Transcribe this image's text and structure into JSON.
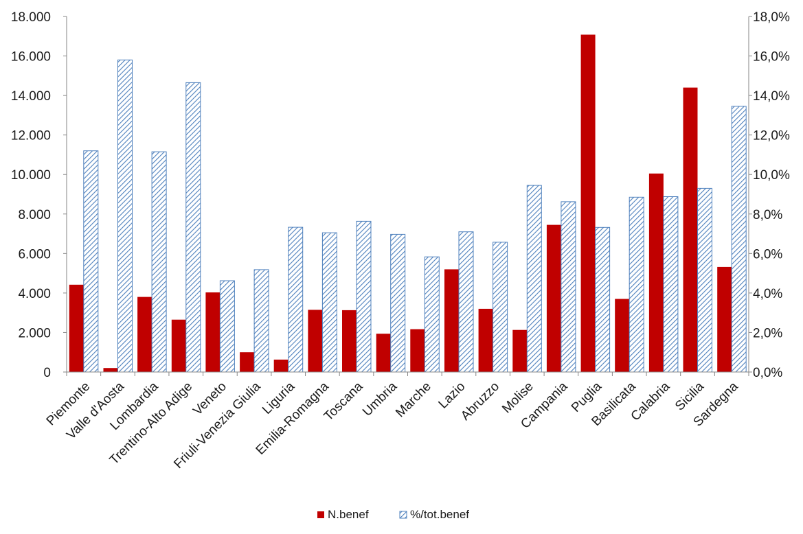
{
  "chart_data": {
    "type": "bar",
    "categories": [
      "Piemonte",
      "Valle d'Aosta",
      "Lombardia",
      "Trentino-Alto Adige",
      "Veneto",
      "Friuli-Venezia Giulia",
      "Liguria",
      "Emilia-Romagna",
      "Toscana",
      "Umbria",
      "Marche",
      "Lazio",
      "Abruzzo",
      "Molise",
      "Campania",
      "Puglia",
      "Basilicata",
      "Calabria",
      "Sicilia",
      "Sardegna"
    ],
    "series": [
      {
        "name": "N.benef",
        "axis": "left",
        "color": "#c00000",
        "values": [
          4420,
          200,
          3800,
          2650,
          4030,
          1000,
          630,
          3150,
          3130,
          1940,
          2170,
          5200,
          3200,
          2130,
          7450,
          17080,
          3700,
          10050,
          14400,
          5320
        ]
      },
      {
        "name": "%/tot.benef",
        "axis": "right",
        "color": "#4f81bd",
        "pattern": "diagonal-hatch",
        "values": [
          11.2,
          15.8,
          11.15,
          14.65,
          4.62,
          5.18,
          7.33,
          7.05,
          7.63,
          6.97,
          5.83,
          7.1,
          6.57,
          9.45,
          8.62,
          7.32,
          8.85,
          8.88,
          9.3,
          13.45
        ]
      }
    ],
    "left_axis": {
      "min": 0,
      "max": 18000,
      "ticks": [
        "0",
        "2.000",
        "4.000",
        "6.000",
        "8.000",
        "10.000",
        "12.000",
        "14.000",
        "16.000",
        "18.000"
      ]
    },
    "right_axis": {
      "min": 0,
      "max": 18,
      "ticks": [
        "0,0%",
        "2,0%",
        "4,0%",
        "6,0%",
        "8,0%",
        "10,0%",
        "12,0%",
        "14,0%",
        "16,0%",
        "18,0%"
      ]
    },
    "grid": false,
    "legend_position": "bottom-center"
  }
}
